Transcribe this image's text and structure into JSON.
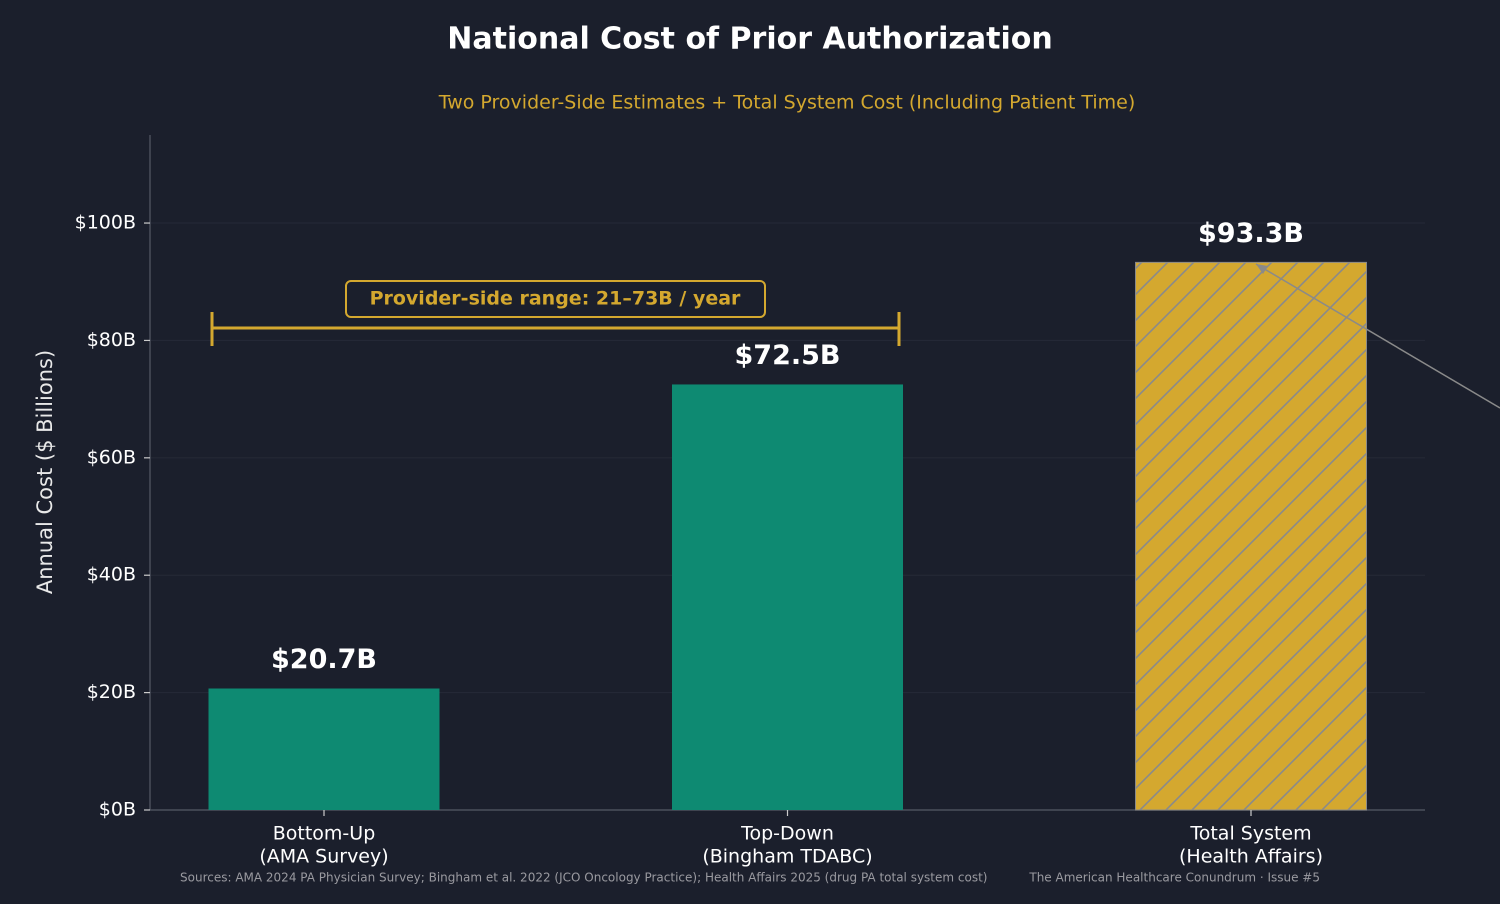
{
  "chart_data": {
    "type": "bar",
    "title": "National Cost of Prior Authorization",
    "subtitle": "Two Provider-Side Estimates + Total System Cost (Including Patient Time)",
    "y_label": "Annual Cost ($ Billions)",
    "categories": [
      [
        "Bottom-Up",
        "(AMA Survey)"
      ],
      [
        "Top-Down",
        "(Bingham TDABC)"
      ],
      [
        "Total System",
        "(Health Affairs)"
      ]
    ],
    "values": [
      20.7,
      72.5,
      93.3
    ],
    "value_labels": [
      "$20.7B",
      "$72.5B",
      "$93.3B"
    ],
    "colors": [
      "#0e8a72",
      "#0e8a72",
      "#d4a82f"
    ],
    "hatched": [
      false,
      false,
      true
    ],
    "ylim": [
      0,
      115
    ],
    "yticks": [
      {
        "value": 0,
        "label": "$0B"
      },
      {
        "value": 20,
        "label": "$20B"
      },
      {
        "value": 40,
        "label": "$40B"
      },
      {
        "value": 60,
        "label": "$60B"
      },
      {
        "value": 80,
        "label": "$80B"
      },
      {
        "value": 100,
        "label": "$100B"
      }
    ],
    "grid": true,
    "annotation": "Provider-side range: 21–73B / year",
    "sources": "Sources: AMA 2024 PA Physician Survey; Bingham et al. 2022 (JCO Oncology Practice); Health Affairs 2025 (drug PA total system cost)",
    "credit": "The American Healthcare Conundrum · Issue #5"
  }
}
